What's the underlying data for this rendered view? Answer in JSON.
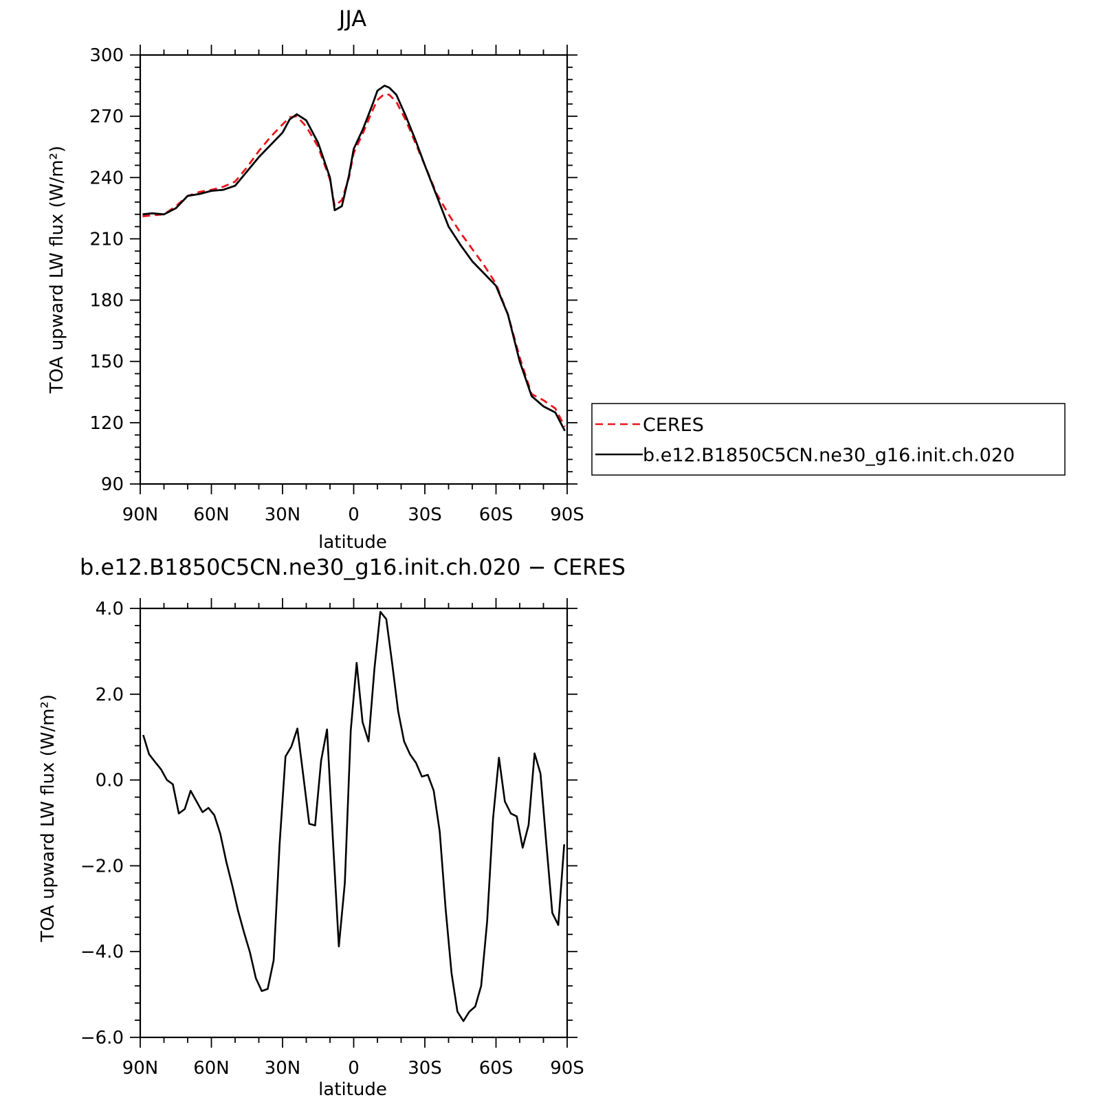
{
  "chart_data": [
    {
      "type": "line",
      "title": "JJA",
      "xlabel": "latitude",
      "ylabel": "TOA upward LW flux (W/m²)",
      "xlim": [
        90,
        -90
      ],
      "ylim": [
        90,
        300
      ],
      "xtick_values": [
        90,
        60,
        30,
        0,
        -30,
        -60,
        -90
      ],
      "xtick_labels": [
        "90N",
        "60N",
        "30N",
        "0",
        "30S",
        "60S",
        "90S"
      ],
      "ytick_values": [
        90,
        120,
        150,
        180,
        210,
        240,
        270,
        300
      ],
      "ytick_labels": [
        "90",
        "120",
        "150",
        "180",
        "210",
        "240",
        "270",
        "300"
      ],
      "legend_position": "right",
      "series": [
        {
          "name": "CERES",
          "color": "#e8141c",
          "style": "dashed",
          "x": [
            89,
            85,
            80,
            75,
            70,
            65,
            60,
            55,
            50,
            45,
            40,
            35,
            30,
            27,
            24,
            20,
            15,
            10,
            8,
            5,
            2,
            0,
            -4,
            -8,
            -10,
            -13,
            -15,
            -18,
            -22,
            -26,
            -30,
            -35,
            -40,
            -45,
            -50,
            -55,
            -60,
            -65,
            -70,
            -75,
            -80,
            -85,
            -89
          ],
          "y": [
            221,
            221.5,
            222,
            226,
            231,
            233,
            234,
            235.5,
            238,
            245,
            253,
            260,
            266,
            269.5,
            270,
            265,
            255,
            239,
            226,
            229,
            240,
            252,
            262,
            273,
            278,
            281,
            280.5,
            277,
            268,
            257,
            246,
            232,
            222,
            213,
            205,
            197,
            188,
            173,
            152,
            134,
            131,
            127,
            118
          ]
        },
        {
          "name": "b.e12.B1850C5CN.ne30_g16.init.ch.020",
          "color": "#000000",
          "style": "solid",
          "x": [
            89,
            85,
            80,
            75,
            70,
            65,
            60,
            55,
            50,
            45,
            40,
            35,
            30,
            27,
            24,
            20,
            15,
            10,
            8,
            5,
            2,
            0,
            -4,
            -8,
            -10,
            -13,
            -15,
            -18,
            -22,
            -26,
            -30,
            -35,
            -40,
            -45,
            -50,
            -55,
            -60,
            -65,
            -70,
            -75,
            -80,
            -85,
            -89
          ],
          "y": [
            222,
            222.5,
            222,
            225,
            231,
            232,
            233.5,
            234,
            236,
            243,
            250,
            256,
            262,
            268.5,
            271,
            268,
            257,
            240,
            224,
            226,
            241,
            254,
            264,
            276,
            282.5,
            285,
            284,
            280.5,
            270,
            258.5,
            246,
            231,
            216,
            207,
            199,
            193,
            187,
            173,
            150,
            133,
            128,
            125,
            116
          ]
        }
      ]
    },
    {
      "type": "line",
      "title": "b.e12.B1850C5CN.ne30_g16.init.ch.020 − CERES",
      "xlabel": "latitude",
      "ylabel": "TOA upward LW flux (W/m²)",
      "xlim": [
        90,
        -90
      ],
      "ylim": [
        -6,
        4
      ],
      "xtick_values": [
        90,
        60,
        30,
        0,
        -30,
        -60,
        -90
      ],
      "xtick_labels": [
        "90N",
        "60N",
        "30N",
        "0",
        "30S",
        "60S",
        "90S"
      ],
      "ytick_values": [
        4,
        2,
        0,
        -2,
        -4,
        -6
      ],
      "ytick_labels": [
        "4.0",
        "2.0",
        "0.0",
        "−2.0",
        "−4.0",
        "−6.0"
      ],
      "series": [
        {
          "color": "#000000",
          "style": "solid",
          "x": [
            88.75,
            86.25,
            83.75,
            81.25,
            78.75,
            76.25,
            73.75,
            71.25,
            68.75,
            66.25,
            63.75,
            61.25,
            58.75,
            56.25,
            53.75,
            51.25,
            48.75,
            46.25,
            43.75,
            41.25,
            38.75,
            36.25,
            33.75,
            31.25,
            28.75,
            26.25,
            23.75,
            21.25,
            18.75,
            16.25,
            13.75,
            11.25,
            8.75,
            6.25,
            3.75,
            1.25,
            -1.25,
            -3.75,
            -6.25,
            -8.75,
            -11.25,
            -13.75,
            -16.25,
            -18.75,
            -21.25,
            -23.75,
            -26.25,
            -28.75,
            -31.25,
            -33.75,
            -36.25,
            -38.75,
            -41.25,
            -43.75,
            -46.25,
            -48.75,
            -51.25,
            -53.75,
            -56.25,
            -58.75,
            -61.25,
            -63.75,
            -66.25,
            -68.75,
            -71.25,
            -73.75,
            -76.25,
            -78.75,
            -81.25,
            -83.75,
            -86.25,
            -88.75
          ],
          "y": [
            1.05,
            0.6,
            0.42,
            0.25,
            0.0,
            -0.1,
            -0.78,
            -0.68,
            -0.25,
            -0.5,
            -0.75,
            -0.65,
            -0.82,
            -1.25,
            -1.9,
            -2.45,
            -3.05,
            -3.55,
            -4.02,
            -4.62,
            -4.92,
            -4.87,
            -4.2,
            -1.5,
            0.55,
            0.78,
            1.2,
            0.1,
            -1.02,
            -1.06,
            0.45,
            1.18,
            -1.4,
            -3.88,
            -2.4,
            1.15,
            2.73,
            1.35,
            0.9,
            2.6,
            3.92,
            3.75,
            2.7,
            1.6,
            0.9,
            0.6,
            0.4,
            0.08,
            0.12,
            -0.25,
            -1.2,
            -3.0,
            -4.5,
            -5.4,
            -5.62,
            -5.4,
            -5.28,
            -4.8,
            -3.3,
            -0.9,
            0.52,
            -0.5,
            -0.78,
            -0.85,
            -1.58,
            -1.05,
            0.62,
            0.15,
            -1.5,
            -3.1,
            -3.38,
            -1.5
          ]
        }
      ]
    }
  ]
}
